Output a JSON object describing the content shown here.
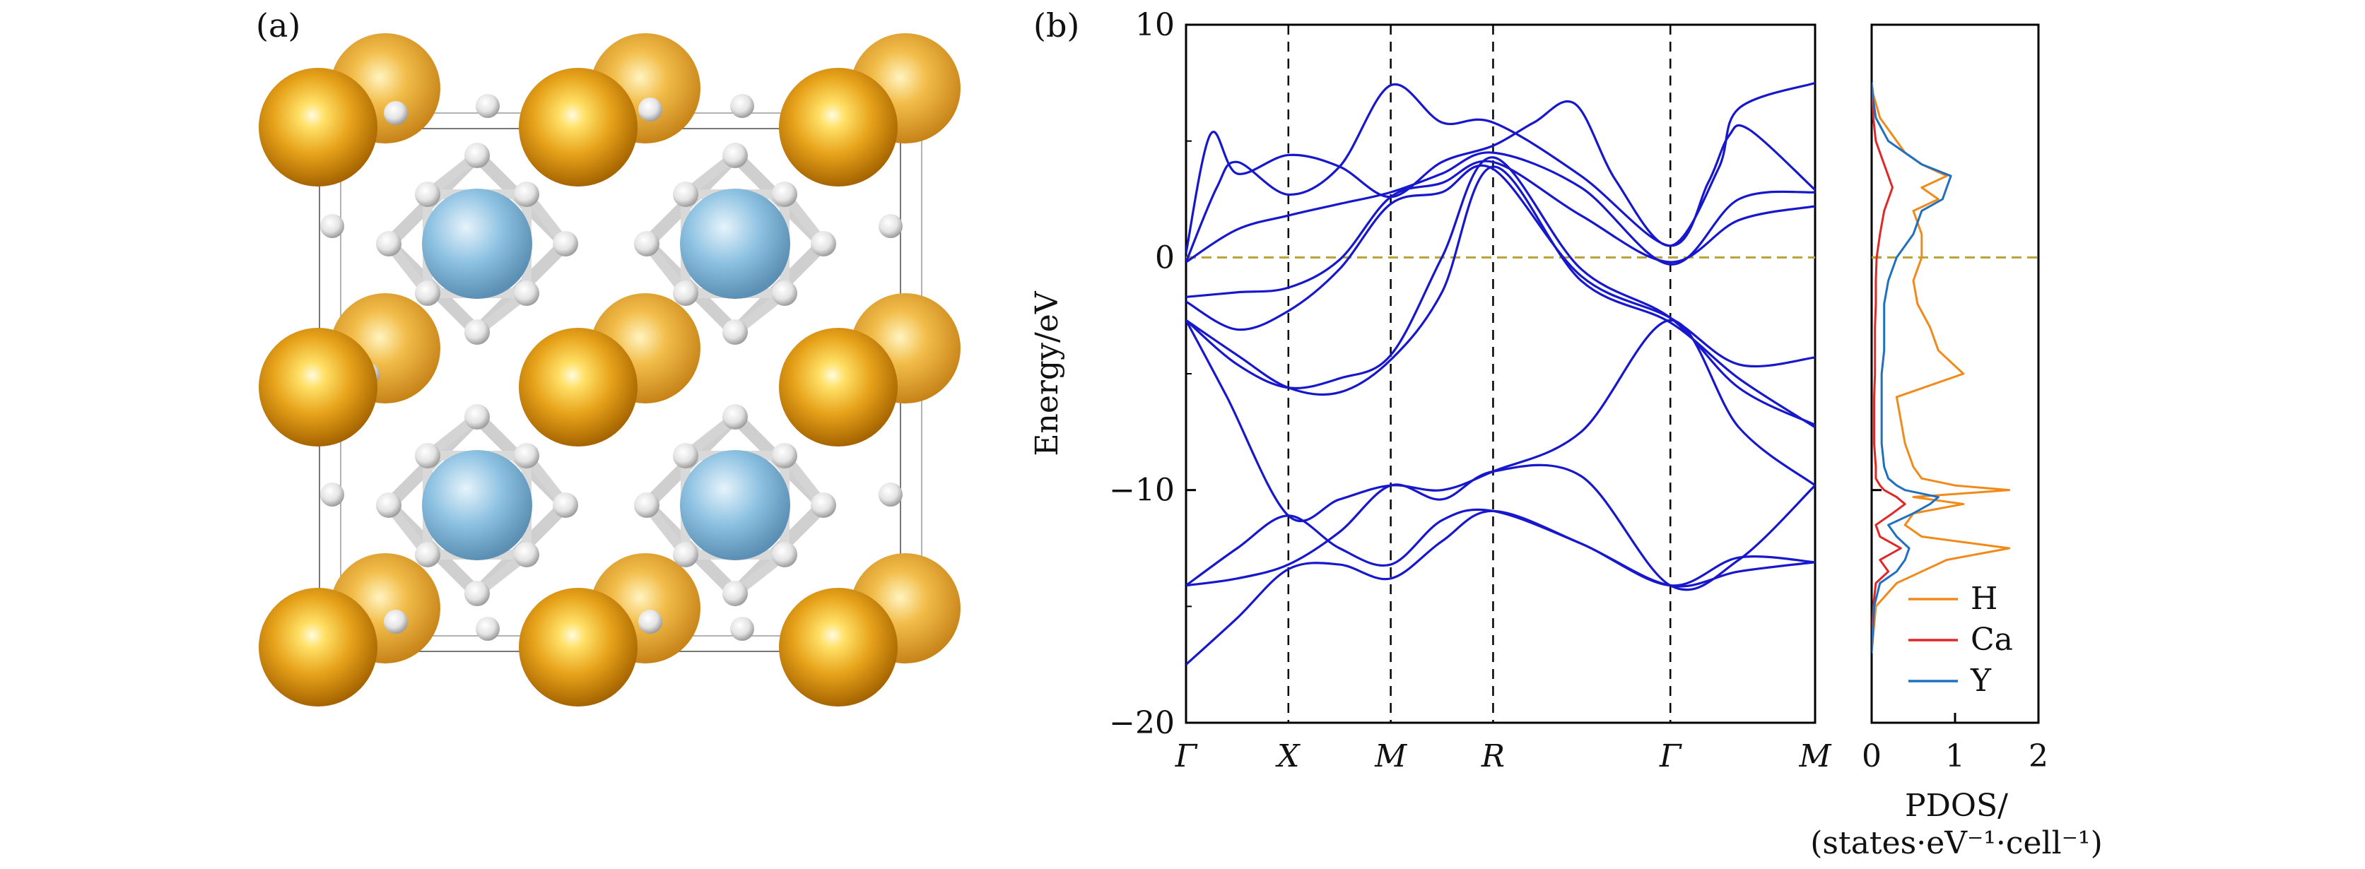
{
  "figure": {
    "panel_a_label": "(a)",
    "panel_b_label": "(b)"
  },
  "structure": {
    "atoms": {
      "large": "Ca-orange-sphere",
      "medium": "Y-blue-sphere",
      "small": "H-white-sphere"
    },
    "colors": {
      "ca": "#e39b10",
      "y": "#7ab6dc",
      "h": "#e2e2e2",
      "bond": "#cfcfcf"
    }
  },
  "chart_data": [
    {
      "type": "line",
      "panel": "(b)",
      "title": "",
      "xlabel": "",
      "ylabel": "Energy/eV",
      "ylim": [
        -20,
        10
      ],
      "yticks": [
        "10",
        "0",
        "−10",
        "−20"
      ],
      "yticks_values": [
        10,
        0,
        -10,
        -20
      ],
      "kpath": [
        "Γ",
        "X",
        "M",
        "R",
        "Γ",
        "M"
      ],
      "kpath_positions": [
        0,
        0.5,
        1.0,
        1.5,
        2.366,
        3.073
      ],
      "fermi_level": 0,
      "band_color": "#1717cc",
      "fermi_color": "#b8a23a",
      "bands": [
        {
          "name": "",
          "values": [
            [
              0,
              -17.5
            ],
            [
              0.25,
              -15.5
            ],
            [
              0.5,
              -13.4
            ],
            [
              0.75,
              -13.2
            ],
            [
              1.0,
              -13.8
            ],
            [
              1.25,
              -12.2
            ],
            [
              1.5,
              -10.9
            ],
            [
              1.93,
              -12.3
            ],
            [
              2.366,
              -14.1
            ],
            [
              2.7,
              -13.5
            ],
            [
              3.073,
              -13.1
            ]
          ]
        },
        {
          "name": "",
          "values": [
            [
              0,
              -14.1
            ],
            [
              0.25,
              -12.5
            ],
            [
              0.5,
              -11.1
            ],
            [
              0.75,
              -12.5
            ],
            [
              1.0,
              -13.2
            ],
            [
              1.25,
              -11.3
            ],
            [
              1.5,
              -10.9
            ],
            [
              1.93,
              -12.3
            ],
            [
              2.366,
              -14.1
            ],
            [
              2.7,
              -12.9
            ],
            [
              3.073,
              -13.1
            ]
          ]
        },
        {
          "name": "",
          "values": [
            [
              0,
              -14.1
            ],
            [
              0.25,
              -13.8
            ],
            [
              0.5,
              -13.2
            ],
            [
              0.75,
              -11.8
            ],
            [
              1.0,
              -9.8
            ],
            [
              1.25,
              -10.4
            ],
            [
              1.5,
              -9.2
            ],
            [
              1.93,
              -9.4
            ],
            [
              2.366,
              -14.1
            ],
            [
              2.7,
              -13.0
            ],
            [
              3.073,
              -9.8
            ]
          ]
        },
        {
          "name": "",
          "values": [
            [
              0,
              -2.7
            ],
            [
              0.2,
              -6.0
            ],
            [
              0.5,
              -11.1
            ],
            [
              0.75,
              -10.4
            ],
            [
              1.0,
              -9.8
            ],
            [
              1.25,
              -10.0
            ],
            [
              1.5,
              -9.2
            ],
            [
              1.93,
              -7.5
            ],
            [
              2.366,
              -2.7
            ],
            [
              2.7,
              -7.3
            ],
            [
              3.073,
              -9.8
            ]
          ]
        },
        {
          "name": "",
          "values": [
            [
              0,
              -2.7
            ],
            [
              0.25,
              -4.2
            ],
            [
              0.5,
              -5.6
            ],
            [
              0.75,
              -5.8
            ],
            [
              1.0,
              -4.4
            ],
            [
              1.25,
              -1.5
            ],
            [
              1.5,
              3.9
            ],
            [
              1.93,
              -1.0
            ],
            [
              2.366,
              -2.8
            ],
            [
              2.7,
              -5.2
            ],
            [
              3.073,
              -7.3
            ]
          ]
        },
        {
          "name": "",
          "values": [
            [
              0,
              -2.7
            ],
            [
              0.25,
              -4.6
            ],
            [
              0.5,
              -5.6
            ],
            [
              0.75,
              -5.2
            ],
            [
              1.0,
              -4.2
            ],
            [
              1.25,
              0.0
            ],
            [
              1.5,
              4.3
            ],
            [
              1.93,
              -0.5
            ],
            [
              2.366,
              -2.6
            ],
            [
              2.7,
              -5.6
            ],
            [
              3.073,
              -7.2
            ]
          ]
        },
        {
          "name": "",
          "values": [
            [
              0,
              -1.9
            ],
            [
              0.25,
              -3.1
            ],
            [
              0.5,
              -2.3
            ],
            [
              0.75,
              -0.5
            ],
            [
              1.0,
              2.3
            ],
            [
              1.25,
              2.8
            ],
            [
              1.5,
              3.8
            ],
            [
              1.93,
              -0.8
            ],
            [
              2.366,
              -2.6
            ],
            [
              2.7,
              -4.6
            ],
            [
              3.073,
              -4.3
            ]
          ]
        },
        {
          "name": "",
          "values": [
            [
              0,
              -1.7
            ],
            [
              0.25,
              -1.5
            ],
            [
              0.5,
              -1.3
            ],
            [
              0.75,
              -0.1
            ],
            [
              1.0,
              2.6
            ],
            [
              1.25,
              3.2
            ],
            [
              1.5,
              4.1
            ],
            [
              1.93,
              1.8
            ],
            [
              2.366,
              -0.2
            ],
            [
              2.7,
              1.6
            ],
            [
              3.073,
              2.2
            ]
          ]
        },
        {
          "name": "",
          "values": [
            [
              0,
              -0.2
            ],
            [
              0.25,
              1.2
            ],
            [
              0.5,
              1.8
            ],
            [
              0.75,
              2.3
            ],
            [
              1.0,
              2.8
            ],
            [
              1.25,
              3.6
            ],
            [
              1.5,
              4.5
            ],
            [
              1.93,
              3.0
            ],
            [
              2.366,
              -0.3
            ],
            [
              2.7,
              2.5
            ],
            [
              3.073,
              2.8
            ]
          ]
        },
        {
          "name": "",
          "values": [
            [
              0,
              -0.2
            ],
            [
              0.15,
              3.0
            ],
            [
              0.25,
              4.1
            ],
            [
              0.5,
              2.7
            ],
            [
              0.75,
              3.9
            ],
            [
              1.0,
              7.4
            ],
            [
              1.25,
              5.8
            ],
            [
              1.5,
              5.8
            ],
            [
              1.93,
              3.5
            ],
            [
              2.366,
              0.5
            ],
            [
              2.55,
              3.2
            ],
            [
              2.65,
              5.2
            ],
            [
              2.75,
              5.5
            ],
            [
              3.073,
              2.9
            ]
          ]
        },
        {
          "name": "",
          "values": [
            [
              0,
              0.2
            ],
            [
              0.12,
              5.3
            ],
            [
              0.25,
              3.6
            ],
            [
              0.5,
              4.4
            ],
            [
              0.75,
              3.9
            ],
            [
              1.0,
              2.6
            ],
            [
              1.25,
              4.1
            ],
            [
              1.5,
              4.8
            ],
            [
              1.7,
              5.8
            ],
            [
              1.9,
              6.6
            ],
            [
              2.1,
              3.3
            ],
            [
              2.366,
              0.5
            ],
            [
              2.6,
              3.8
            ],
            [
              2.7,
              6.4
            ],
            [
              3.073,
              7.5
            ]
          ]
        }
      ]
    },
    {
      "type": "line",
      "panel": "(b)-PDOS",
      "title": "",
      "xlabel": "PDOS/",
      "xlabel_line2": "(states·eV⁻¹·cell⁻¹)",
      "ylabel": "",
      "xlim": [
        0,
        2
      ],
      "xticks": [
        "0",
        "1",
        "2"
      ],
      "ylim": [
        -20,
        10
      ],
      "fermi_level": 0,
      "legend_position": "lower-right",
      "y": [
        -17,
        -15,
        -14,
        -13.5,
        -13,
        -12.5,
        -12,
        -11.5,
        -11,
        -10.6,
        -10.3,
        -10,
        -9.8,
        -9.5,
        -9,
        -8,
        -7,
        -6,
        -5,
        -4,
        -3,
        -2,
        -1,
        0,
        1,
        2,
        2.5,
        3,
        3.5,
        4,
        4.5,
        5,
        6,
        7,
        7.5
      ],
      "series": [
        {
          "name": "H",
          "color": "#f08a1a",
          "values": [
            0,
            0.05,
            0.3,
            0.6,
            0.9,
            1.65,
            0.6,
            0.4,
            0.5,
            1.1,
            0.5,
            1.65,
            1.0,
            0.6,
            0.5,
            0.4,
            0.35,
            0.3,
            1.1,
            0.8,
            0.7,
            0.55,
            0.5,
            0.6,
            0.6,
            0.5,
            0.8,
            0.6,
            0.9,
            0.6,
            0.4,
            0.3,
            0.1,
            0.02,
            0
          ]
        },
        {
          "name": "Ca",
          "color": "#e02828",
          "values": [
            0,
            0.02,
            0.05,
            0.2,
            0.1,
            0.35,
            0.1,
            0.05,
            0.25,
            0.4,
            0.3,
            0.15,
            0.1,
            0.05,
            0.05,
            0.03,
            0.03,
            0.03,
            0.04,
            0.04,
            0.04,
            0.05,
            0.05,
            0.06,
            0.1,
            0.15,
            0.2,
            0.25,
            0.2,
            0.15,
            0.1,
            0.05,
            0.02,
            0.01,
            0
          ]
        },
        {
          "name": "Y",
          "color": "#1f70c0",
          "values": [
            0,
            0.03,
            0.1,
            0.3,
            0.4,
            0.45,
            0.3,
            0.2,
            0.5,
            0.7,
            0.8,
            0.4,
            0.3,
            0.2,
            0.15,
            0.12,
            0.12,
            0.12,
            0.12,
            0.15,
            0.15,
            0.15,
            0.2,
            0.3,
            0.5,
            0.6,
            0.85,
            0.9,
            0.95,
            0.6,
            0.4,
            0.2,
            0.05,
            0.01,
            0
          ]
        }
      ]
    }
  ]
}
